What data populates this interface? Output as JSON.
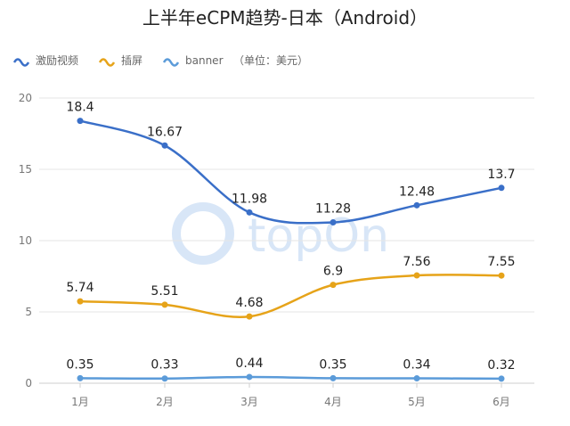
{
  "chart_data": {
    "type": "line",
    "title": "上半年eCPM趋势-日本（Android）",
    "unit_note": "（单位：美元）",
    "categories": [
      "1月",
      "2月",
      "3月",
      "4月",
      "5月",
      "6月"
    ],
    "ylim": [
      0,
      20
    ],
    "yticks": [
      0,
      5,
      10,
      15,
      20
    ],
    "grid": true,
    "legend_position": "top-left",
    "series": [
      {
        "name": "激励视频",
        "color": "#3a6fc8",
        "values": [
          18.4,
          16.67,
          11.98,
          11.28,
          12.48,
          13.7
        ],
        "labels": [
          "18.4",
          "16.67",
          "11.98",
          "11.28",
          "12.48",
          "13.7"
        ]
      },
      {
        "name": "插屏",
        "color": "#e6a319",
        "values": [
          5.74,
          5.51,
          4.68,
          6.9,
          7.56,
          7.55
        ],
        "labels": [
          "5.74",
          "5.51",
          "4.68",
          "6.9",
          "7.56",
          "7.55"
        ]
      },
      {
        "name": "banner",
        "color": "#5b9bd9",
        "values": [
          0.35,
          0.33,
          0.44,
          0.35,
          0.34,
          0.32
        ],
        "labels": [
          "0.35",
          "0.33",
          "0.44",
          "0.35",
          "0.34",
          "0.32"
        ]
      }
    ]
  },
  "watermark": {
    "text": "topOn",
    "color": "#d8e6f7"
  }
}
